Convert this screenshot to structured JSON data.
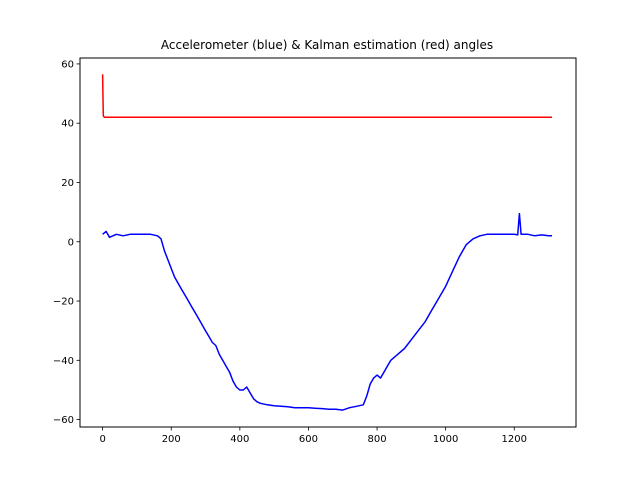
{
  "chart_data": {
    "type": "line",
    "title": "Accelerometer (blue) & Kalman estimation (red) angles",
    "xlabel": "",
    "ylabel": "",
    "xlim": [
      -66,
      1380
    ],
    "ylim": [
      -62.5,
      62
    ],
    "xticks": [
      0,
      200,
      400,
      600,
      800,
      1000,
      1200
    ],
    "yticks": [
      -60,
      -40,
      -20,
      0,
      20,
      40,
      60
    ],
    "grid": false,
    "legend": "none",
    "series": [
      {
        "color": "#0000ff",
        "x": [
          0,
          10,
          20,
          40,
          60,
          80,
          100,
          120,
          140,
          160,
          170,
          180,
          190,
          200,
          210,
          220,
          230,
          240,
          250,
          260,
          270,
          280,
          290,
          300,
          310,
          320,
          330,
          340,
          350,
          360,
          370,
          380,
          390,
          400,
          410,
          420,
          430,
          440,
          450,
          460,
          480,
          500,
          520,
          540,
          560,
          580,
          600,
          620,
          640,
          660,
          680,
          700,
          720,
          740,
          760,
          770,
          780,
          790,
          800,
          810,
          820,
          830,
          840,
          860,
          880,
          900,
          920,
          940,
          960,
          980,
          1000,
          1020,
          1040,
          1060,
          1080,
          1100,
          1120,
          1140,
          1160,
          1180,
          1200,
          1210,
          1215,
          1220,
          1240,
          1260,
          1280,
          1300,
          1310
        ],
        "y": [
          2.5,
          3.5,
          1.5,
          2.5,
          2,
          2.5,
          2.5,
          2.5,
          2.5,
          2,
          1,
          -3,
          -6,
          -9,
          -12,
          -14,
          -16,
          -18,
          -20,
          -22,
          -24,
          -26,
          -28,
          -30,
          -32,
          -34,
          -35,
          -38,
          -40,
          -42,
          -44,
          -47,
          -49,
          -50,
          -50,
          -49,
          -51,
          -53,
          -54,
          -54.5,
          -55,
          -55.3,
          -55.5,
          -55.7,
          -56,
          -56,
          -56,
          -56.2,
          -56.3,
          -56.5,
          -56.5,
          -56.8,
          -56,
          -55.5,
          -55,
          -52,
          -48,
          -46,
          -45,
          -46,
          -44,
          -42,
          -40,
          -38,
          -36,
          -33,
          -30,
          -27,
          -23,
          -19,
          -15,
          -10,
          -5,
          -1,
          1,
          2,
          2.5,
          2.5,
          2.5,
          2.5,
          2.5,
          2.3,
          9.5,
          2.5,
          2.5,
          2,
          2.3,
          2,
          2
        ]
      },
      {
        "color": "#ff0000",
        "x": [
          0,
          2,
          5,
          1310
        ],
        "y": [
          56.5,
          42.5,
          42,
          42
        ]
      }
    ]
  }
}
